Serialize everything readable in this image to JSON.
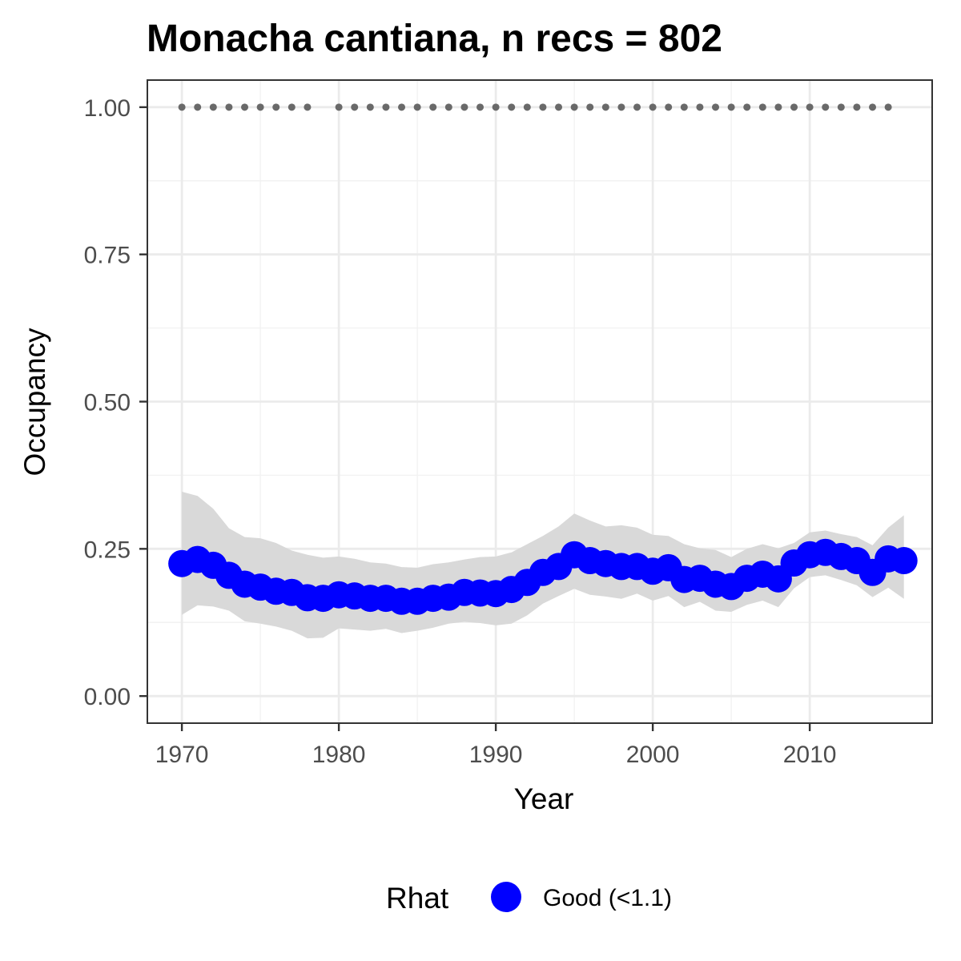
{
  "chart_data": {
    "type": "line",
    "title": "Monacha cantiana, n recs = 802",
    "xlabel": "Year",
    "ylabel": "Occupancy",
    "xlim": [
      1967.8,
      2017.8
    ],
    "ylim": [
      -0.046,
      1.046
    ],
    "x_ticks": [
      1970,
      1980,
      1990,
      2000,
      2010
    ],
    "y_ticks": [
      0.0,
      0.25,
      0.5,
      0.75,
      1.0
    ],
    "y_tick_labels": [
      "0.00",
      "0.25",
      "0.50",
      "0.75",
      "1.00"
    ],
    "grid": true,
    "legend": {
      "title": "Rhat",
      "position": "bottom",
      "entries": [
        {
          "label": "Good (<1.1)",
          "color": "#0000ff"
        }
      ]
    },
    "series": [
      {
        "type": "line-points",
        "color": "#0000ff",
        "x": [
          1970,
          1971,
          1972,
          1973,
          1974,
          1975,
          1976,
          1977,
          1978,
          1979,
          1980,
          1981,
          1982,
          1983,
          1984,
          1985,
          1986,
          1987,
          1988,
          1989,
          1990,
          1991,
          1992,
          1993,
          1994,
          1995,
          1996,
          1997,
          1998,
          1999,
          2000,
          2001,
          2002,
          2003,
          2004,
          2005,
          2006,
          2007,
          2008,
          2009,
          2010,
          2011,
          2012,
          2013,
          2014,
          2015,
          2016
        ],
        "y": [
          0.225,
          0.232,
          0.222,
          0.205,
          0.19,
          0.185,
          0.178,
          0.176,
          0.167,
          0.166,
          0.172,
          0.17,
          0.166,
          0.166,
          0.161,
          0.161,
          0.166,
          0.168,
          0.176,
          0.175,
          0.174,
          0.181,
          0.193,
          0.21,
          0.22,
          0.24,
          0.23,
          0.225,
          0.22,
          0.22,
          0.212,
          0.218,
          0.198,
          0.2,
          0.19,
          0.186,
          0.2,
          0.207,
          0.199,
          0.226,
          0.24,
          0.244,
          0.237,
          0.23,
          0.21,
          0.233,
          0.23
        ]
      },
      {
        "type": "ribbon",
        "color": "#d9d9d9",
        "x": [
          1970,
          1971,
          1972,
          1973,
          1974,
          1975,
          1976,
          1977,
          1978,
          1979,
          1980,
          1981,
          1982,
          1983,
          1984,
          1985,
          1986,
          1987,
          1988,
          1989,
          1990,
          1991,
          1992,
          1993,
          1994,
          1995,
          1996,
          1997,
          1998,
          1999,
          2000,
          2001,
          2002,
          2003,
          2004,
          2005,
          2006,
          2007,
          2008,
          2009,
          2010,
          2011,
          2012,
          2013,
          2014,
          2015,
          2016
        ],
        "lower": [
          0.138,
          0.154,
          0.152,
          0.145,
          0.127,
          0.123,
          0.118,
          0.111,
          0.098,
          0.099,
          0.115,
          0.113,
          0.111,
          0.114,
          0.107,
          0.111,
          0.116,
          0.123,
          0.126,
          0.124,
          0.12,
          0.123,
          0.137,
          0.157,
          0.17,
          0.182,
          0.172,
          0.169,
          0.165,
          0.174,
          0.162,
          0.17,
          0.151,
          0.16,
          0.145,
          0.143,
          0.155,
          0.162,
          0.151,
          0.183,
          0.202,
          0.205,
          0.197,
          0.188,
          0.168,
          0.184,
          0.165
        ],
        "upper": [
          0.347,
          0.34,
          0.318,
          0.285,
          0.27,
          0.268,
          0.26,
          0.247,
          0.24,
          0.235,
          0.237,
          0.233,
          0.227,
          0.225,
          0.219,
          0.218,
          0.224,
          0.227,
          0.232,
          0.236,
          0.237,
          0.244,
          0.258,
          0.272,
          0.288,
          0.31,
          0.298,
          0.288,
          0.29,
          0.286,
          0.274,
          0.272,
          0.258,
          0.251,
          0.248,
          0.236,
          0.25,
          0.258,
          0.251,
          0.26,
          0.278,
          0.281,
          0.275,
          0.27,
          0.256,
          0.286,
          0.307
        ]
      },
      {
        "type": "points",
        "color": "#696969",
        "x": [
          1970,
          1971,
          1972,
          1973,
          1974,
          1975,
          1976,
          1977,
          1978,
          1980,
          1981,
          1982,
          1983,
          1984,
          1985,
          1986,
          1987,
          1988,
          1989,
          1990,
          1991,
          1992,
          1993,
          1994,
          1995,
          1996,
          1997,
          1998,
          1999,
          2000,
          2001,
          2002,
          2003,
          2004,
          2005,
          2006,
          2007,
          2008,
          2009,
          2010,
          2011,
          2012,
          2013,
          2014,
          2015
        ],
        "y": [
          1,
          1,
          1,
          1,
          1,
          1,
          1,
          1,
          1,
          1,
          1,
          1,
          1,
          1,
          1,
          1,
          1,
          1,
          1,
          1,
          1,
          1,
          1,
          1,
          1,
          1,
          1,
          1,
          1,
          1,
          1,
          1,
          1,
          1,
          1,
          1,
          1,
          1,
          1,
          1,
          1,
          1,
          1,
          1,
          1
        ]
      }
    ]
  }
}
